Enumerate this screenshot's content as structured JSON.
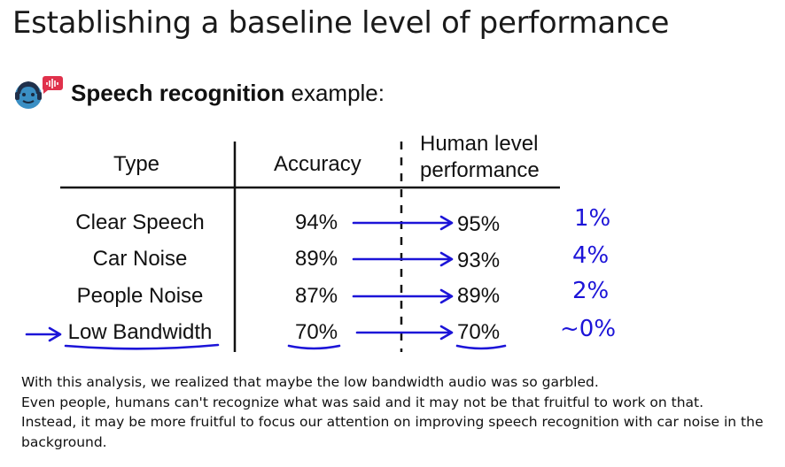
{
  "title": "Establishing a baseline level of performance",
  "subtitle": {
    "bold": "Speech recognition",
    "rest": " example:"
  },
  "table": {
    "headers": {
      "type": "Type",
      "accuracy": "Accuracy",
      "human_line1": "Human level",
      "human_line2": "performance"
    },
    "rows": [
      {
        "type": "Clear Speech",
        "accuracy": "94%",
        "human": "95%",
        "note": "1%"
      },
      {
        "type": "Car Noise",
        "accuracy": "89%",
        "human": "93%",
        "note": "4%"
      },
      {
        "type": "People Noise",
        "accuracy": "87%",
        "human": "89%",
        "note": "2%"
      },
      {
        "type": "Low Bandwidth",
        "accuracy": "70%",
        "human": "70%",
        "note": "~0%"
      }
    ]
  },
  "caption": {
    "line1": "With this analysis, we realized that maybe the low bandwidth audio was so garbled.",
    "line2": "Even people, humans can't recognize what was said and it may not be that fruitful to work on that.",
    "line3": "Instead, it may be more fruitful to focus our attention on improving speech recognition with car noise in the",
    "line4": "background."
  },
  "colors": {
    "ink": "#1c14d8",
    "icon_face": "#3a8fc4",
    "icon_bubble": "#e0314b",
    "text": "#111111"
  },
  "icons": {
    "speaker": "person-speaking-icon"
  }
}
